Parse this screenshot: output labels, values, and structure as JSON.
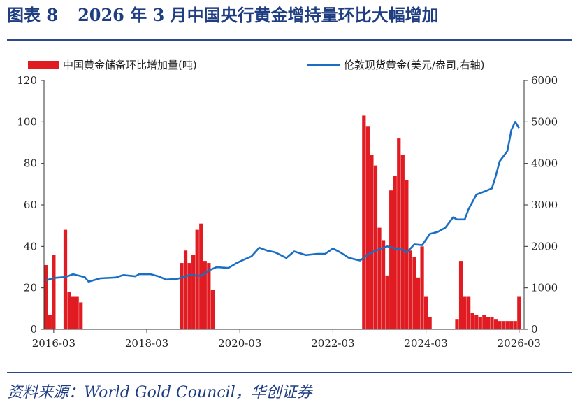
{
  "figure": {
    "label": "图表 8",
    "title": "2026 年 3 月中国央行黄金增持量环比大幅增加",
    "source": "资料来源：World Gold Council，华创证券"
  },
  "colors": {
    "bar": "#e11b22",
    "line": "#1a6fc4",
    "rule": "#2a4a8c",
    "title": "#1f3e82"
  },
  "chart_data": {
    "type": "bar+line",
    "title": "2026 年 3 月中国央行黄金增持量环比大幅增加",
    "x_ticks": [
      "2016-03",
      "2018-03",
      "2020-03",
      "2022-03",
      "2024-03",
      "2026-03"
    ],
    "y_left": {
      "ylim": [
        0,
        120
      ],
      "ticks": [
        "0",
        "20",
        "40",
        "60",
        "80",
        "100",
        "120"
      ]
    },
    "y_right": {
      "ylim": [
        0,
        6000
      ],
      "ticks": [
        "0",
        "1000",
        "2000",
        "3000",
        "4000",
        "5000",
        "6000"
      ]
    },
    "legend": {
      "bar": "中国黄金储备环比增加量(吨)",
      "line": "伦敦现货黄金(美元/盎司,右轴)"
    },
    "series": [
      {
        "name": "中国黄金储备环比增加量(吨)",
        "type": "bar",
        "axis": "left",
        "points": [
          [
            "2016-01",
            31
          ],
          [
            "2016-02",
            7
          ],
          [
            "2016-03",
            36
          ],
          [
            "2016-04",
            0
          ],
          [
            "2016-05",
            0
          ],
          [
            "2016-06",
            48
          ],
          [
            "2016-07",
            18
          ],
          [
            "2016-08",
            16
          ],
          [
            "2016-09",
            16
          ],
          [
            "2016-10",
            13
          ],
          [
            "2018-12",
            32
          ],
          [
            "2019-01",
            38
          ],
          [
            "2019-02",
            32
          ],
          [
            "2019-03",
            36
          ],
          [
            "2019-04",
            48
          ],
          [
            "2019-05",
            51
          ],
          [
            "2019-06",
            33
          ],
          [
            "2019-07",
            32
          ],
          [
            "2019-08",
            19
          ],
          [
            "2022-11",
            103
          ],
          [
            "2022-12",
            98
          ],
          [
            "2023-01",
            84
          ],
          [
            "2023-02",
            79
          ],
          [
            "2023-03",
            49
          ],
          [
            "2023-04",
            43
          ],
          [
            "2023-05",
            26
          ],
          [
            "2023-06",
            67
          ],
          [
            "2023-07",
            74
          ],
          [
            "2023-08",
            92
          ],
          [
            "2023-09",
            84
          ],
          [
            "2023-10",
            72
          ],
          [
            "2023-11",
            38
          ],
          [
            "2023-12",
            35
          ],
          [
            "2024-01",
            25
          ],
          [
            "2024-02",
            40
          ],
          [
            "2024-03",
            16
          ],
          [
            "2024-04",
            6
          ],
          [
            "2024-11",
            5
          ],
          [
            "2024-12",
            33
          ],
          [
            "2025-01",
            16
          ],
          [
            "2025-02",
            16
          ],
          [
            "2025-03",
            8
          ],
          [
            "2025-04",
            7
          ],
          [
            "2025-05",
            6
          ],
          [
            "2025-06",
            7
          ],
          [
            "2025-07",
            6
          ],
          [
            "2025-08",
            6
          ],
          [
            "2025-09",
            5
          ],
          [
            "2025-10",
            4
          ],
          [
            "2025-11",
            4
          ],
          [
            "2025-12",
            4
          ],
          [
            "2026-01",
            4
          ],
          [
            "2026-02",
            4
          ],
          [
            "2026-03",
            16
          ]
        ]
      },
      {
        "name": "伦敦现货黄金(美元/盎司,右轴)",
        "type": "line",
        "axis": "right",
        "points": [
          [
            "2016-01",
            1180
          ],
          [
            "2016-03",
            1240
          ],
          [
            "2016-06",
            1260
          ],
          [
            "2016-08",
            1330
          ],
          [
            "2016-11",
            1260
          ],
          [
            "2016-12",
            1150
          ],
          [
            "2017-03",
            1230
          ],
          [
            "2017-07",
            1250
          ],
          [
            "2017-09",
            1310
          ],
          [
            "2017-12",
            1280
          ],
          [
            "2018-01",
            1330
          ],
          [
            "2018-04",
            1330
          ],
          [
            "2018-06",
            1280
          ],
          [
            "2018-08",
            1200
          ],
          [
            "2018-11",
            1220
          ],
          [
            "2019-02",
            1310
          ],
          [
            "2019-05",
            1290
          ],
          [
            "2019-07",
            1420
          ],
          [
            "2019-09",
            1500
          ],
          [
            "2019-12",
            1480
          ],
          [
            "2020-02",
            1590
          ],
          [
            "2020-04",
            1680
          ],
          [
            "2020-06",
            1760
          ],
          [
            "2020-08",
            1970
          ],
          [
            "2020-10",
            1900
          ],
          [
            "2020-12",
            1860
          ],
          [
            "2021-03",
            1720
          ],
          [
            "2021-05",
            1880
          ],
          [
            "2021-08",
            1790
          ],
          [
            "2021-11",
            1820
          ],
          [
            "2022-01",
            1820
          ],
          [
            "2022-03",
            1950
          ],
          [
            "2022-05",
            1850
          ],
          [
            "2022-07",
            1730
          ],
          [
            "2022-09",
            1680
          ],
          [
            "2022-10",
            1660
          ],
          [
            "2022-12",
            1800
          ],
          [
            "2023-02",
            1900
          ],
          [
            "2023-05",
            2000
          ],
          [
            "2023-07",
            1950
          ],
          [
            "2023-09",
            1920
          ],
          [
            "2023-10",
            1850
          ],
          [
            "2023-12",
            2050
          ],
          [
            "2024-02",
            2030
          ],
          [
            "2024-04",
            2300
          ],
          [
            "2024-06",
            2350
          ],
          [
            "2024-08",
            2450
          ],
          [
            "2024-10",
            2700
          ],
          [
            "2024-11",
            2650
          ],
          [
            "2025-01",
            2650
          ],
          [
            "2025-02",
            2900
          ],
          [
            "2025-04",
            3250
          ],
          [
            "2025-06",
            3320
          ],
          [
            "2025-08",
            3400
          ],
          [
            "2025-09",
            3700
          ],
          [
            "2025-10",
            4050
          ],
          [
            "2025-12",
            4300
          ],
          [
            "2026-01",
            4800
          ],
          [
            "2026-02",
            5000
          ],
          [
            "2026-03",
            4850
          ]
        ]
      }
    ]
  }
}
